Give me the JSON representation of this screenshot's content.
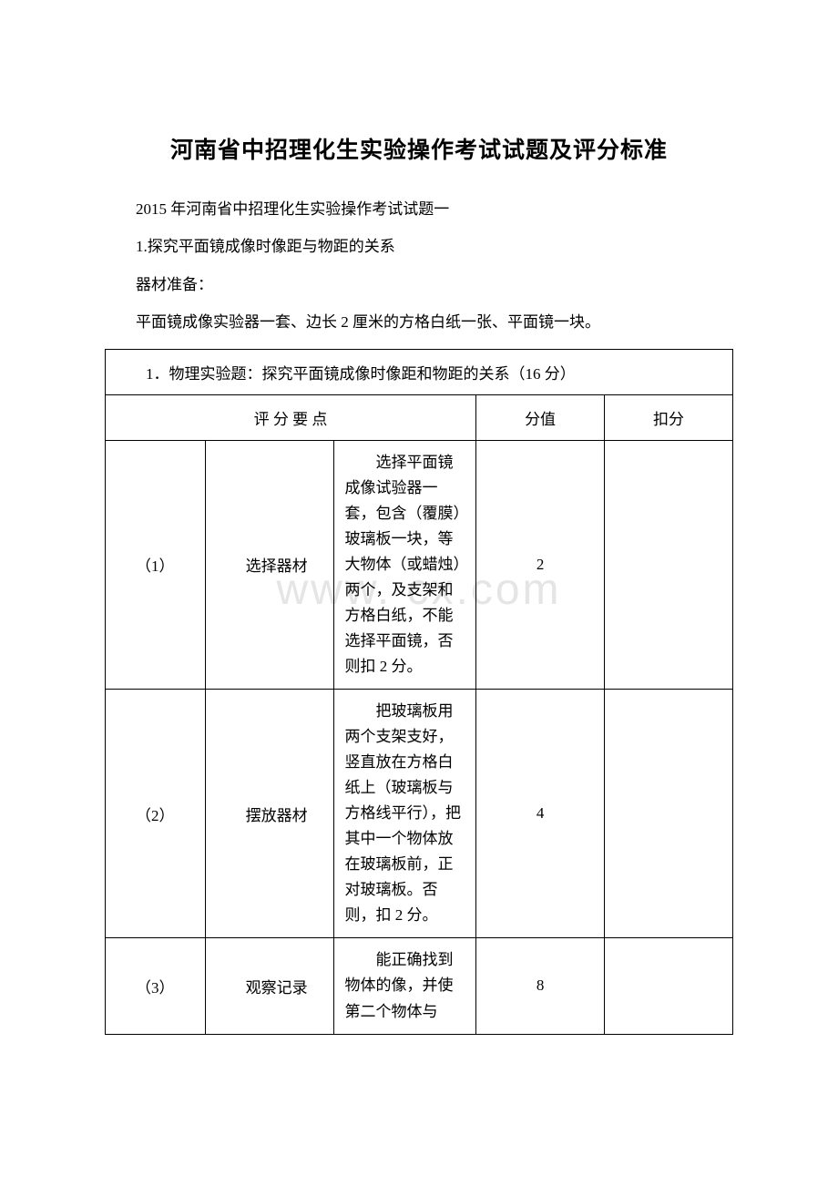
{
  "title": "河南省中招理化生实验操作考试试题及评分标准",
  "intro": {
    "line1": "2015 年河南省中招理化生实验操作考试试题一",
    "line2": "1.探究平面镜成像时像距与物距的关系",
    "line3": "器材准备：",
    "line4": "平面镜成像实验器一套、边长 2 厘米的方格白纸一张、平面镜一块。"
  },
  "table": {
    "header_full": "1．物理实验题：探究平面镜成像时像距和物距的关系（16 分）",
    "sub_header_1": "评 分 要 点",
    "sub_header_2": "分值",
    "sub_header_3": "扣分",
    "rows": [
      {
        "num": "（1）",
        "label": "选择器材",
        "desc": "选择平面镜成像试验器一套，包含（覆膜）玻璃板一块，等大物体（或蜡烛）两个，及支架和方格白纸，不能选择平面镜，否则扣 2 分。",
        "score": "2",
        "deduct": ""
      },
      {
        "num": "（2）",
        "label": "摆放器材",
        "desc": "把玻璃板用两个支架支好，竖直放在方格白纸上（玻璃板与方格线平行），把其中一个物体放在玻璃板前，正对玻璃板。否则，扣 2 分。",
        "score": "4",
        "deduct": ""
      },
      {
        "num": "（3）",
        "label": "观察记录",
        "desc": "能正确找到物体的像，并使第二个物体与",
        "score": "8",
        "deduct": ""
      }
    ]
  },
  "watermark": "www.         cx.com",
  "colors": {
    "background": "#ffffff",
    "text": "#000000",
    "border": "#000000",
    "watermark": "#e5e5e5"
  }
}
